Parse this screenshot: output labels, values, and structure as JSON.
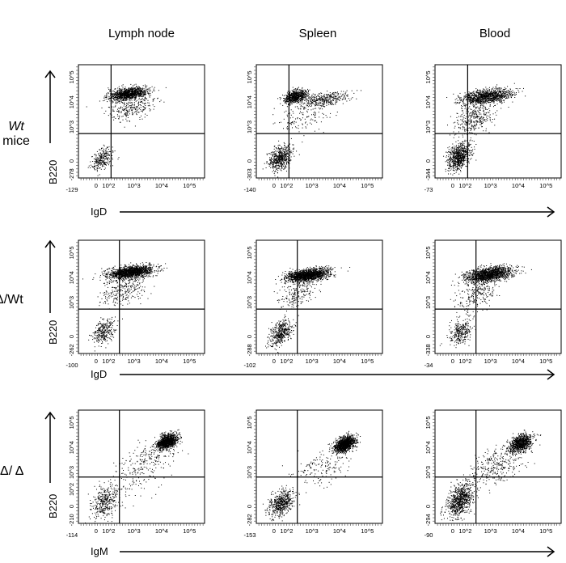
{
  "column_titles": [
    "Lymph node",
    "Spleen",
    "Blood"
  ],
  "row_labels": [
    {
      "italic": "Wt",
      "plain": "mice"
    },
    {
      "italic": "",
      "plain": "Δ/Wt"
    },
    {
      "italic": "",
      "plain": "Δ/ Δ"
    }
  ],
  "y_axis_label": "B220",
  "x_axis_labels": [
    "IgD",
    "IgD",
    "IgM"
  ],
  "colors": {
    "dots": "#000000",
    "gate": "#000000",
    "frame": "#000000"
  },
  "chart_data": [
    {
      "type": "scatter",
      "row": 0,
      "col": 0,
      "xlabel": "IgD",
      "ylabel": "B220",
      "x_ticks": [
        "-129",
        "0",
        "10^2",
        "10^3",
        "10^4",
        "10^5"
      ],
      "y_ticks": [
        "-278",
        "0",
        "10^3",
        "10^4",
        "10^5"
      ],
      "xlim": [
        -129,
        250000
      ],
      "ylim": [
        -278,
        250000
      ],
      "gate": {
        "x": 150,
        "y": 600
      },
      "populations": [
        {
          "x": 600,
          "y": 22000,
          "sx": 0.35,
          "sy": 0.15,
          "n": 1100
        },
        {
          "x": 800,
          "y": 6000,
          "sx": 0.4,
          "sy": 0.3,
          "n": 250
        },
        {
          "x": 60,
          "y": 20,
          "sx": 0.2,
          "sy": 0.25,
          "n": 260
        }
      ]
    },
    {
      "type": "scatter",
      "row": 0,
      "col": 1,
      "xlabel": "IgD",
      "ylabel": "B220",
      "x_ticks": [
        "-140",
        "0",
        "10^2",
        "10^3",
        "10^4",
        "10^5"
      ],
      "y_ticks": [
        "-303",
        "0",
        "10^3",
        "10^4",
        "10^5"
      ],
      "xlim": [
        -140,
        250000
      ],
      "ylim": [
        -303,
        250000
      ],
      "gate": {
        "x": 150,
        "y": 600
      },
      "populations": [
        {
          "x": 250,
          "y": 17000,
          "sx": 0.2,
          "sy": 0.15,
          "n": 650
        },
        {
          "x": 2500,
          "y": 13000,
          "sx": 0.45,
          "sy": 0.18,
          "n": 350
        },
        {
          "x": 500,
          "y": 2500,
          "sx": 0.5,
          "sy": 0.4,
          "n": 150
        },
        {
          "x": 60,
          "y": 30,
          "sx": 0.2,
          "sy": 0.3,
          "n": 550
        }
      ]
    },
    {
      "type": "scatter",
      "row": 0,
      "col": 2,
      "xlabel": "IgD",
      "ylabel": "B220",
      "x_ticks": [
        "-73",
        "0",
        "10^2",
        "10^3",
        "10^4",
        "10^5"
      ],
      "y_ticks": [
        "-344",
        "0",
        "10^3",
        "10^4",
        "10^5"
      ],
      "xlim": [
        -73,
        250000
      ],
      "ylim": [
        -344,
        250000
      ],
      "gate": {
        "x": 150,
        "y": 600
      },
      "populations": [
        {
          "x": 700,
          "y": 17000,
          "sx": 0.45,
          "sy": 0.17,
          "n": 1100
        },
        {
          "x": 250,
          "y": 2500,
          "sx": 0.35,
          "sy": 0.4,
          "n": 350
        },
        {
          "x": 60,
          "y": 40,
          "sx": 0.2,
          "sy": 0.3,
          "n": 700
        }
      ]
    },
    {
      "type": "scatter",
      "row": 1,
      "col": 0,
      "xlabel": "IgD",
      "ylabel": "B220",
      "x_ticks": [
        "-100",
        "0",
        "10^2",
        "10^3",
        "10^4",
        "10^5"
      ],
      "y_ticks": [
        "-262",
        "0",
        "10^3",
        "10^4",
        "10^5"
      ],
      "xlim": [
        -100,
        250000
      ],
      "ylim": [
        -262,
        250000
      ],
      "gate": {
        "x": 300,
        "y": 600
      },
      "populations": [
        {
          "x": 700,
          "y": 17000,
          "sx": 0.4,
          "sy": 0.15,
          "n": 1500
        },
        {
          "x": 400,
          "y": 3000,
          "sx": 0.4,
          "sy": 0.35,
          "n": 250
        },
        {
          "x": 70,
          "y": 40,
          "sx": 0.2,
          "sy": 0.3,
          "n": 300
        }
      ]
    },
    {
      "type": "scatter",
      "row": 1,
      "col": 1,
      "xlabel": "IgD",
      "ylabel": "B220",
      "x_ticks": [
        "-102",
        "0",
        "10^2",
        "10^3",
        "10^4",
        "10^5"
      ],
      "y_ticks": [
        "-288",
        "0",
        "10^3",
        "10^4",
        "10^5"
      ],
      "xlim": [
        -102,
        250000
      ],
      "ylim": [
        -288,
        250000
      ],
      "gate": {
        "x": 300,
        "y": 600
      },
      "populations": [
        {
          "x": 700,
          "y": 13000,
          "sx": 0.38,
          "sy": 0.15,
          "n": 1500
        },
        {
          "x": 300,
          "y": 2500,
          "sx": 0.35,
          "sy": 0.35,
          "n": 200
        },
        {
          "x": 60,
          "y": 30,
          "sx": 0.2,
          "sy": 0.3,
          "n": 450
        }
      ]
    },
    {
      "type": "scatter",
      "row": 1,
      "col": 2,
      "xlabel": "IgD",
      "ylabel": "B220",
      "x_ticks": [
        "-34",
        "0",
        "10^2",
        "10^3",
        "10^4",
        "10^5"
      ],
      "y_ticks": [
        "-338",
        "0",
        "10^3",
        "10^4",
        "10^5"
      ],
      "xlim": [
        -34,
        250000
      ],
      "ylim": [
        -338,
        250000
      ],
      "gate": {
        "x": 300,
        "y": 600
      },
      "populations": [
        {
          "x": 900,
          "y": 14000,
          "sx": 0.42,
          "sy": 0.17,
          "n": 1400
        },
        {
          "x": 300,
          "y": 2500,
          "sx": 0.35,
          "sy": 0.4,
          "n": 250
        },
        {
          "x": 80,
          "y": 40,
          "sx": 0.2,
          "sy": 0.3,
          "n": 300
        }
      ]
    },
    {
      "type": "scatter",
      "row": 2,
      "col": 0,
      "xlabel": "IgM",
      "ylabel": "B220",
      "x_ticks": [
        "-114",
        "0",
        "10^2",
        "10^3",
        "10^4",
        "10^5"
      ],
      "y_ticks": [
        "-210",
        "0",
        "10^2",
        "10^3",
        "10^4",
        "10^5"
      ],
      "xlim": [
        -114,
        250000
      ],
      "ylim": [
        -210,
        250000
      ],
      "gate": {
        "x": 300,
        "y": 700
      },
      "populations": [
        {
          "x": 15000,
          "y": 18000,
          "sx": 0.18,
          "sy": 0.17,
          "n": 1100
        },
        {
          "x": 3000,
          "y": 3000,
          "sx": 0.5,
          "sy": 0.45,
          "n": 200
        },
        {
          "x": 80,
          "y": 40,
          "sx": 0.25,
          "sy": 0.35,
          "n": 350
        },
        {
          "x": 600,
          "y": 300,
          "sx": 0.6,
          "sy": 0.5,
          "n": 80
        }
      ]
    },
    {
      "type": "scatter",
      "row": 2,
      "col": 1,
      "xlabel": "IgM",
      "ylabel": "B220",
      "x_ticks": [
        "-153",
        "0",
        "10^2",
        "10^3",
        "10^4",
        "10^5"
      ],
      "y_ticks": [
        "-282",
        "0",
        "10^3",
        "10^4",
        "10^5"
      ],
      "xlim": [
        -153,
        250000
      ],
      "ylim": [
        -282,
        250000
      ],
      "gate": {
        "x": 300,
        "y": 700
      },
      "populations": [
        {
          "x": 15000,
          "y": 14000,
          "sx": 0.18,
          "sy": 0.18,
          "n": 1200
        },
        {
          "x": 2000,
          "y": 1500,
          "sx": 0.5,
          "sy": 0.4,
          "n": 150
        },
        {
          "x": 70,
          "y": 30,
          "sx": 0.22,
          "sy": 0.3,
          "n": 550
        }
      ]
    },
    {
      "type": "scatter",
      "row": 2,
      "col": 2,
      "xlabel": "IgM",
      "ylabel": "B220",
      "x_ticks": [
        "-90",
        "0",
        "10^2",
        "10^3",
        "10^4",
        "10^5"
      ],
      "y_ticks": [
        "-294",
        "0",
        "10^3",
        "10^4",
        "10^5"
      ],
      "xlim": [
        -90,
        250000
      ],
      "ylim": [
        -294,
        250000
      ],
      "gate": {
        "x": 300,
        "y": 700
      },
      "populations": [
        {
          "x": 12000,
          "y": 15000,
          "sx": 0.2,
          "sy": 0.2,
          "n": 900
        },
        {
          "x": 1500,
          "y": 2000,
          "sx": 0.5,
          "sy": 0.45,
          "n": 300
        },
        {
          "x": 70,
          "y": 60,
          "sx": 0.25,
          "sy": 0.4,
          "n": 800
        }
      ]
    }
  ]
}
